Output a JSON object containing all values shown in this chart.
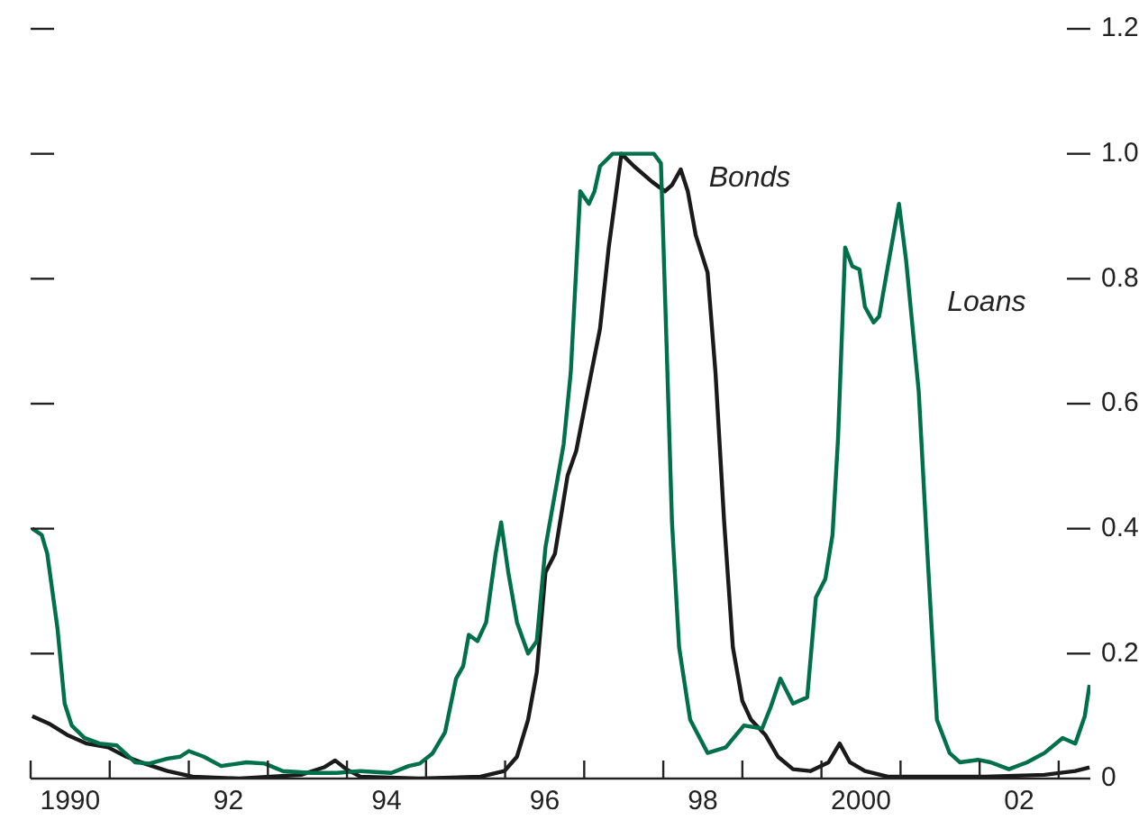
{
  "chart_data": {
    "type": "line",
    "xlim": [
      1989.5,
      2002.9
    ],
    "xticks": [
      {
        "value": 1989.5,
        "label": null
      },
      {
        "value": 1990,
        "label": "1990"
      },
      {
        "value": 1990.5,
        "label": null
      },
      {
        "value": 1991.5,
        "label": null
      },
      {
        "value": 1992,
        "label": "92"
      },
      {
        "value": 1992.5,
        "label": null
      },
      {
        "value": 1993.5,
        "label": null
      },
      {
        "value": 1994,
        "label": "94"
      },
      {
        "value": 1994.5,
        "label": null
      },
      {
        "value": 1995.5,
        "label": null
      },
      {
        "value": 1996,
        "label": "96"
      },
      {
        "value": 1996.5,
        "label": null
      },
      {
        "value": 1997.5,
        "label": null
      },
      {
        "value": 1998,
        "label": "98"
      },
      {
        "value": 1998.5,
        "label": null
      },
      {
        "value": 1999.5,
        "label": null
      },
      {
        "value": 2000,
        "label": "2000"
      },
      {
        "value": 2000.5,
        "label": null
      },
      {
        "value": 2001.5,
        "label": null
      },
      {
        "value": 2002,
        "label": "02"
      },
      {
        "value": 2002.5,
        "label": null
      }
    ],
    "ylim": [
      0,
      1.2
    ],
    "yticks": [
      0,
      0.2,
      0.4,
      0.6,
      0.8,
      {
        "value": 1,
        "label": "1.0"
      },
      1.2
    ],
    "grid": false,
    "legend": false,
    "marker": "none",
    "line_style": "solid",
    "series": [
      {
        "name": "Loans",
        "color": "#00704a",
        "x": [
          1989.52,
          1989.64,
          1989.71,
          1989.84,
          1989.93,
          1990.02,
          1990.18,
          1990.37,
          1990.59,
          1990.82,
          1991.0,
          1991.23,
          1991.39,
          1991.5,
          1991.69,
          1991.91,
          1992.23,
          1992.46,
          1992.69,
          1993.05,
          1993.37,
          1993.67,
          1994.06,
          1994.28,
          1994.42,
          1994.58,
          1994.74,
          1994.88,
          1994.97,
          1995.04,
          1995.15,
          1995.26,
          1995.38,
          1995.45,
          1995.54,
          1995.65,
          1995.79,
          1995.9,
          1996.01,
          1996.24,
          1996.33,
          1996.45,
          1996.56,
          1996.63,
          1996.7,
          1996.86,
          1997.04,
          1997.24,
          1997.38,
          1997.47,
          1997.54,
          1997.61,
          1997.7,
          1997.84,
          1998.06,
          1998.29,
          1998.52,
          1998.75,
          1998.86,
          1998.98,
          1999.14,
          1999.32,
          1999.43,
          1999.55,
          1999.64,
          1999.71,
          1999.8,
          1999.89,
          1999.98,
          2000.05,
          2000.16,
          2000.23,
          2000.34,
          2000.48,
          2000.57,
          2000.73,
          2000.84,
          2000.96,
          2001.12,
          2001.25,
          2001.48,
          2001.64,
          2001.87,
          2002.1,
          2002.32,
          2002.55,
          2002.71,
          2002.83,
          2002.89
        ],
        "values": [
          0.4,
          0.39,
          0.36,
          0.24,
          0.12,
          0.085,
          0.065,
          0.056,
          0.053,
          0.026,
          0.024,
          0.032,
          0.035,
          0.044,
          0.035,
          0.02,
          0.026,
          0.024,
          0.012,
          0.009,
          0.009,
          0.012,
          0.009,
          0.02,
          0.024,
          0.04,
          0.074,
          0.16,
          0.18,
          0.23,
          0.22,
          0.25,
          0.36,
          0.41,
          0.33,
          0.25,
          0.2,
          0.22,
          0.37,
          0.535,
          0.65,
          0.94,
          0.92,
          0.94,
          0.98,
          1.0,
          1.0,
          1.0,
          1.0,
          0.985,
          0.7,
          0.41,
          0.21,
          0.094,
          0.041,
          0.05,
          0.085,
          0.08,
          0.115,
          0.16,
          0.12,
          0.13,
          0.29,
          0.32,
          0.39,
          0.545,
          0.85,
          0.82,
          0.815,
          0.755,
          0.73,
          0.74,
          0.82,
          0.92,
          0.83,
          0.62,
          0.36,
          0.094,
          0.041,
          0.026,
          0.03,
          0.026,
          0.015,
          0.026,
          0.041,
          0.065,
          0.056,
          0.1,
          0.15
        ]
      },
      {
        "name": "Bonds",
        "color": "#1a1a1a",
        "x": [
          1989.52,
          1989.73,
          1989.96,
          1990.21,
          1990.48,
          1990.71,
          1990.94,
          1991.23,
          1991.55,
          1992.14,
          1992.92,
          1993.21,
          1993.35,
          1993.49,
          1993.67,
          1994.42,
          1995.19,
          1995.49,
          1995.65,
          1995.79,
          1995.9,
          1996.01,
          1996.13,
          1996.29,
          1996.4,
          1996.56,
          1996.7,
          1996.81,
          1996.97,
          1997.13,
          1997.36,
          1997.52,
          1997.61,
          1997.72,
          1997.81,
          1997.91,
          1998.06,
          1998.16,
          1998.27,
          1998.38,
          1998.5,
          1998.61,
          1998.79,
          1998.95,
          1999.14,
          1999.36,
          1999.59,
          1999.73,
          1999.86,
          2000.05,
          2000.34,
          2000.8,
          2001.57,
          2002.32,
          2002.71,
          2002.89
        ],
        "values": [
          0.1,
          0.088,
          0.07,
          0.056,
          0.05,
          0.035,
          0.024,
          0.012,
          0.003,
          0.0,
          0.006,
          0.018,
          0.029,
          0.015,
          0.003,
          0.0,
          0.003,
          0.012,
          0.035,
          0.094,
          0.17,
          0.33,
          0.36,
          0.485,
          0.525,
          0.63,
          0.72,
          0.85,
          1.0,
          0.98,
          0.955,
          0.94,
          0.95,
          0.975,
          0.94,
          0.87,
          0.81,
          0.65,
          0.41,
          0.21,
          0.124,
          0.094,
          0.07,
          0.035,
          0.015,
          0.012,
          0.026,
          0.056,
          0.026,
          0.012,
          0.003,
          0.003,
          0.003,
          0.006,
          0.012,
          0.018
        ]
      }
    ]
  }
}
